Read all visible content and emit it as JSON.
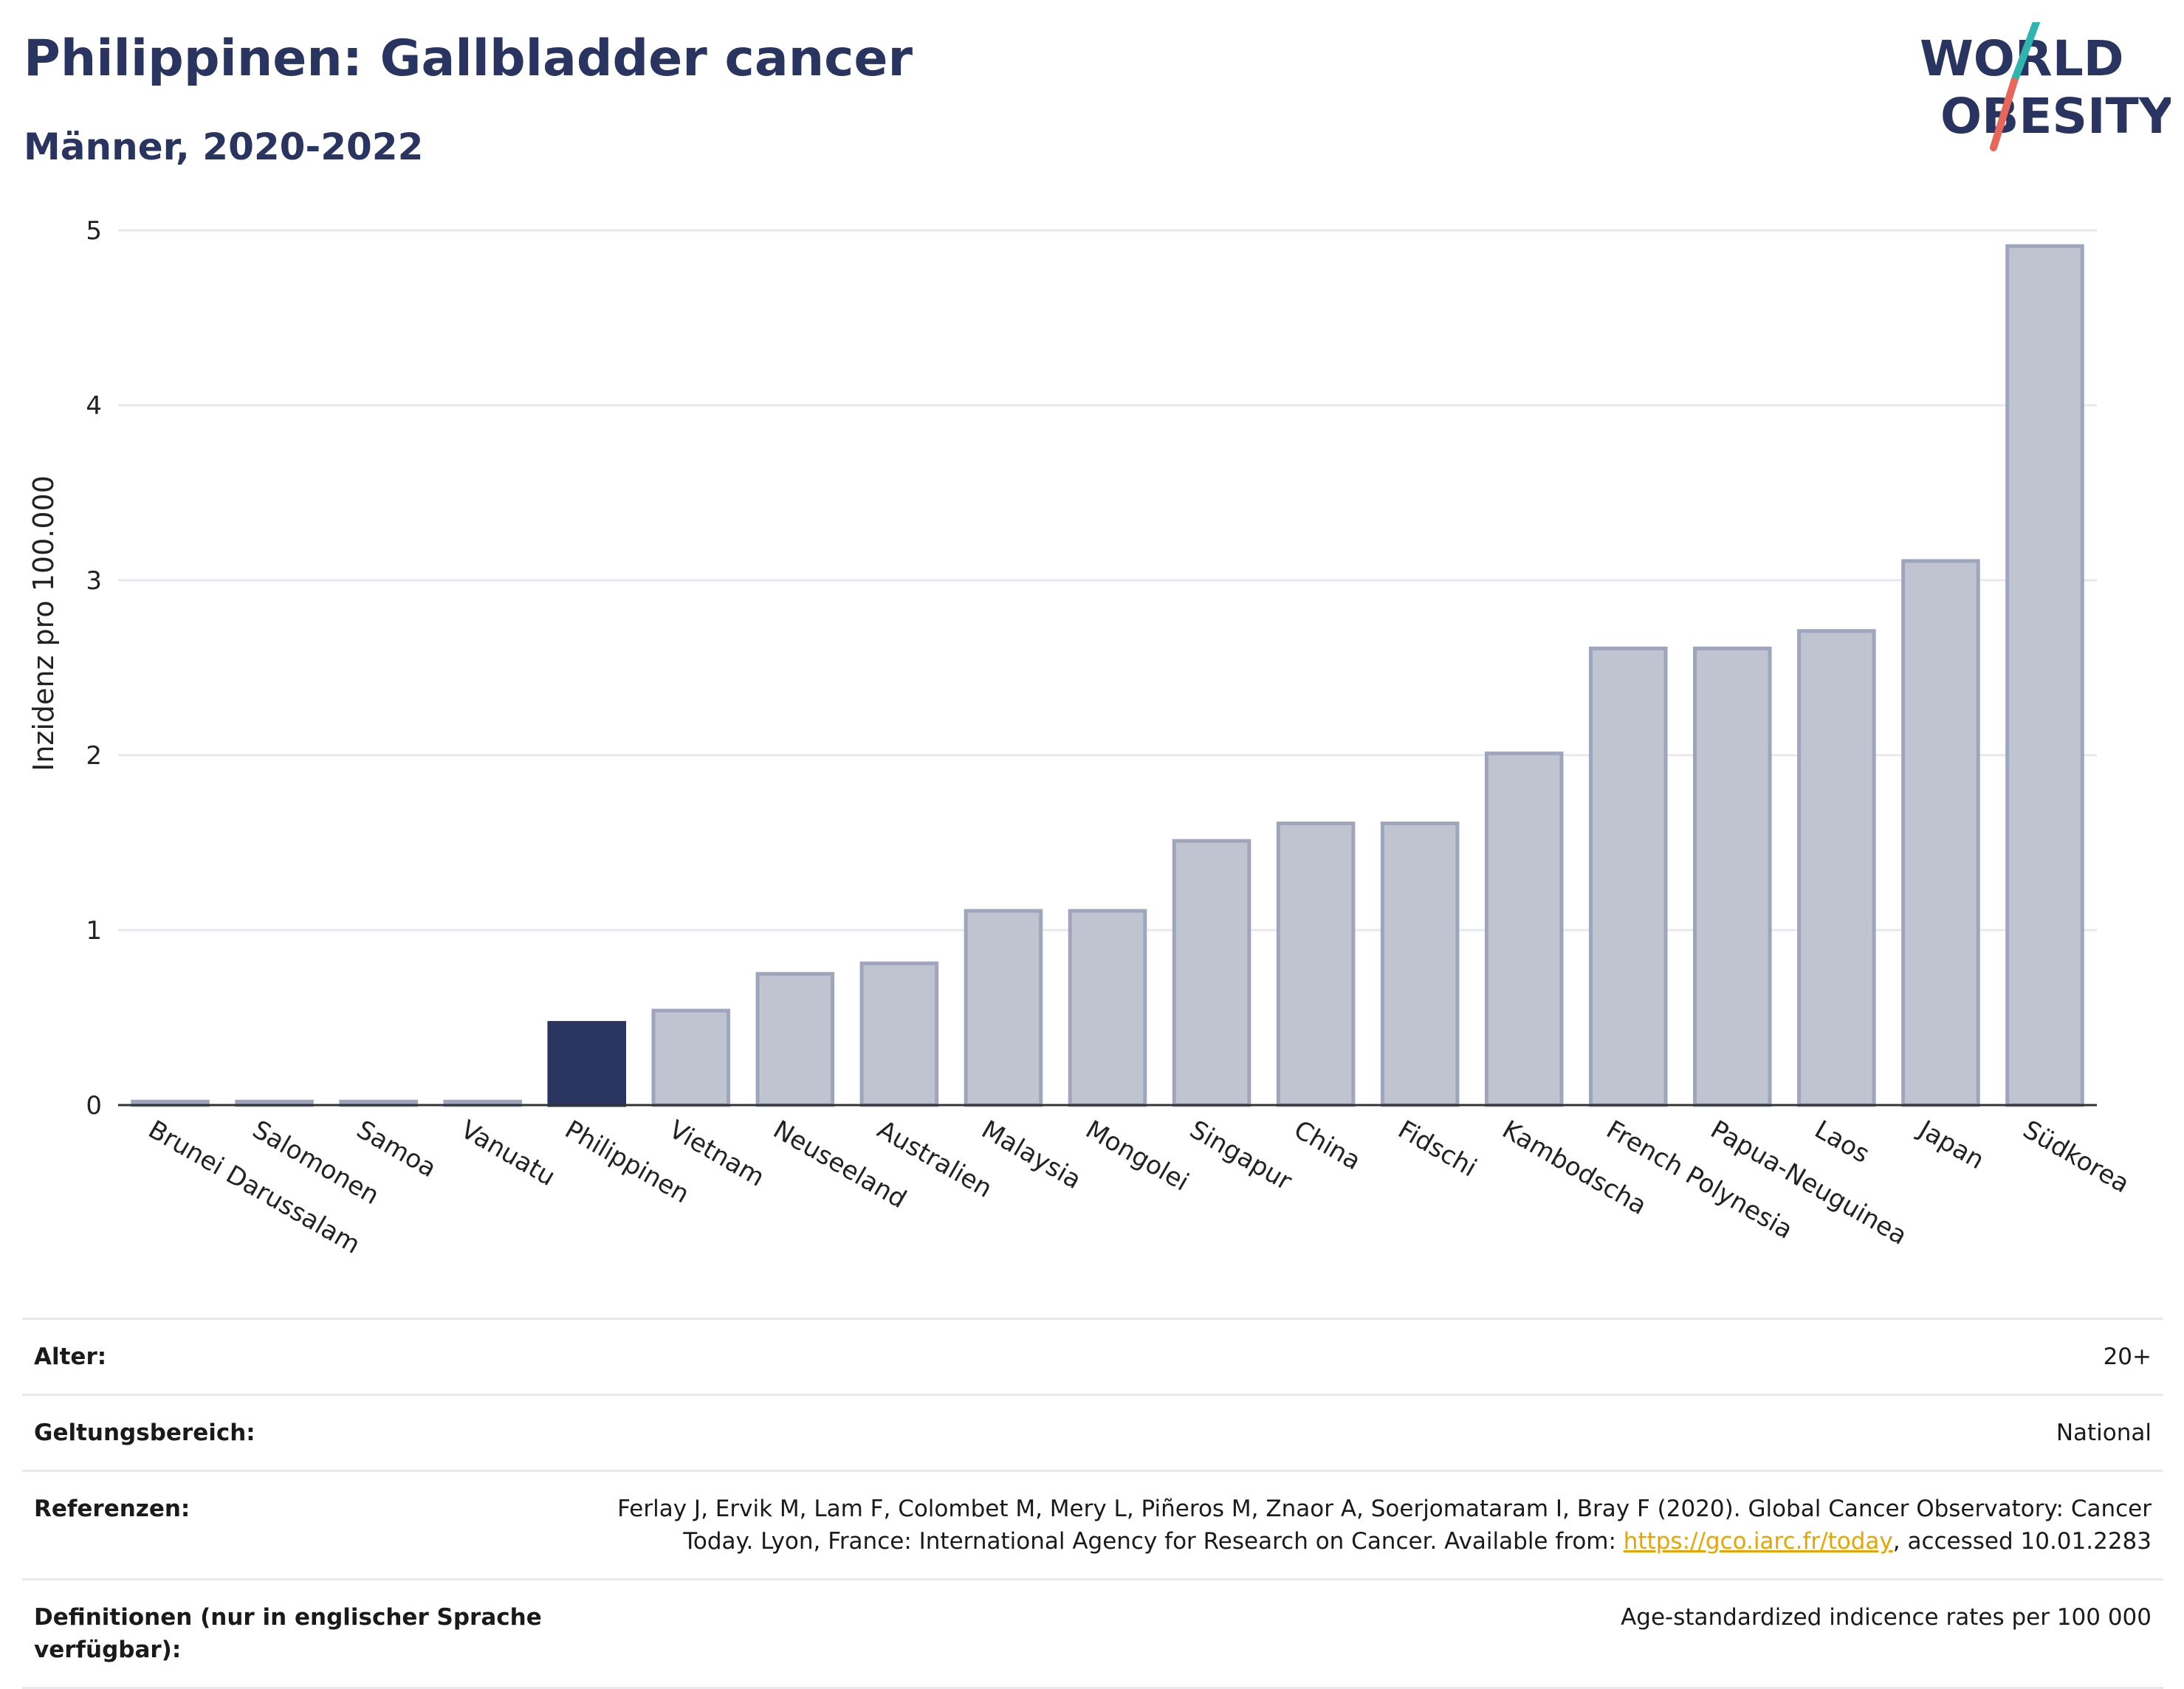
{
  "header": {
    "title": "Philippinen: Gallbladder cancer",
    "subtitle": "Männer, 2020-2022"
  },
  "logo": {
    "line1": "WORLD",
    "line2": "OBESITY",
    "accent_teal": "#2fb5b0",
    "accent_red": "#e8675a"
  },
  "chart_data": {
    "type": "bar",
    "categories": [
      "Brunei Darussalam",
      "Salomonen",
      "Samoa",
      "Vanuatu",
      "Philippinen",
      "Vietnam",
      "Neuseeland",
      "Australien",
      "Malaysia",
      "Mongolei",
      "Singapur",
      "China",
      "Fidschi",
      "Kambodscha",
      "French Polynesia",
      "Papua-Neuguinea",
      "Laos",
      "Japan",
      "Südkorea"
    ],
    "values": [
      0.02,
      0.02,
      0.02,
      0.02,
      0.47,
      0.54,
      0.75,
      0.81,
      1.11,
      1.11,
      1.51,
      1.61,
      1.61,
      2.01,
      2.61,
      2.61,
      2.71,
      3.11,
      4.91
    ],
    "highlight": "Philippinen",
    "ylabel": "Inzidenz pro 100.000",
    "xlabel": "",
    "ylim": [
      0,
      5
    ],
    "yticks": [
      0,
      1,
      2,
      3,
      4,
      5
    ],
    "grid": true,
    "colors": {
      "bar": "#c0c4d1",
      "bar_border": "#9ea5bc",
      "highlight": "#2a3460",
      "grid": "#e6e8ee",
      "axis": "#333333"
    }
  },
  "meta": {
    "rows": [
      {
        "label": "Alter:",
        "value": "20+"
      },
      {
        "label": "Geltungsbereich:",
        "value": "National"
      },
      {
        "label": "Referenzen:",
        "value_pre": "Ferlay J, Ervik M, Lam F, Colombet M, Mery L, Piñeros M, Znaor A, Soerjomataram I, Bray F (2020). Global Cancer Observatory: Cancer Today. Lyon, France: International Agency for Research on Cancer. Available from: ",
        "link": "https://gco.iarc.fr/today",
        "value_post": ", accessed 10.01.2283"
      },
      {
        "label": "Definitionen (nur in englischer Sprache verfügbar):",
        "value": "Age-standardized indicence rates per 100 000"
      }
    ]
  }
}
